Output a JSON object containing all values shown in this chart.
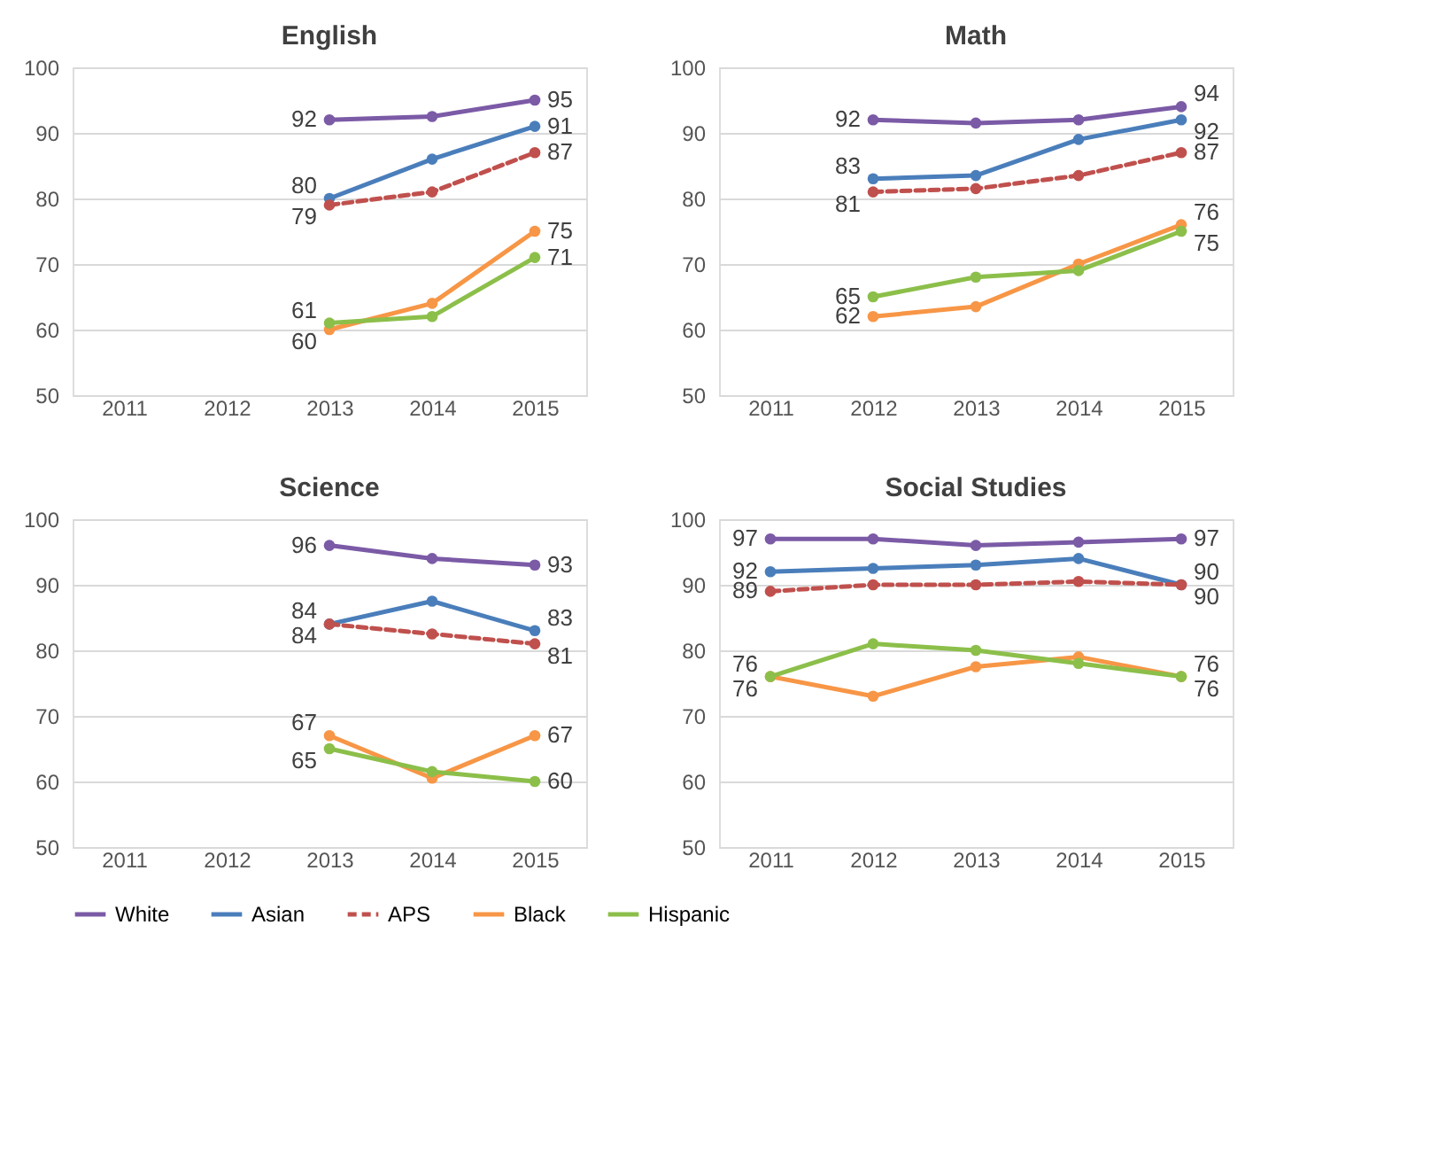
{
  "chart_data": [
    {
      "type": "line",
      "title": "English",
      "categories": [
        "2011",
        "2012",
        "2013",
        "2014",
        "2015"
      ],
      "ylim": [
        50,
        100
      ],
      "yticks": [
        50,
        60,
        70,
        80,
        90,
        100
      ],
      "grid": "y",
      "marker": "circle",
      "legend": "bottom",
      "series": [
        {
          "name": "White",
          "color": "#7b5aa6",
          "values": [
            null,
            null,
            92,
            92.5,
            95
          ],
          "value_labels": [
            null,
            null,
            "92",
            null,
            "95"
          ]
        },
        {
          "name": "Asian",
          "color": "#4a7ebb",
          "values": [
            null,
            null,
            80,
            86,
            91
          ],
          "value_labels": [
            null,
            null,
            "80",
            null,
            "91"
          ]
        },
        {
          "name": "APS",
          "color": "#c0504d",
          "line_style": "dashed",
          "values": [
            null,
            null,
            79,
            81,
            87
          ],
          "value_labels": [
            null,
            null,
            "79",
            null,
            "87"
          ]
        },
        {
          "name": "Black",
          "color": "#f79646",
          "values": [
            null,
            null,
            60,
            64,
            75
          ],
          "value_labels": [
            null,
            null,
            "60",
            null,
            "75"
          ]
        },
        {
          "name": "Hispanic",
          "color": "#8cbf4a",
          "values": [
            null,
            null,
            61,
            62,
            71
          ],
          "value_labels": [
            null,
            null,
            "61",
            null,
            "71"
          ]
        }
      ]
    },
    {
      "type": "line",
      "title": "Math",
      "categories": [
        "2011",
        "2012",
        "2013",
        "2014",
        "2015"
      ],
      "ylim": [
        50,
        100
      ],
      "yticks": [
        50,
        60,
        70,
        80,
        90,
        100
      ],
      "grid": "y",
      "marker": "circle",
      "legend": "bottom",
      "series": [
        {
          "name": "White",
          "color": "#7b5aa6",
          "values": [
            null,
            92,
            91.5,
            92,
            94
          ],
          "value_labels": [
            null,
            "92",
            null,
            null,
            "94"
          ]
        },
        {
          "name": "Asian",
          "color": "#4a7ebb",
          "values": [
            null,
            83,
            83.5,
            89,
            92
          ],
          "value_labels": [
            null,
            "83",
            null,
            null,
            "92"
          ]
        },
        {
          "name": "APS",
          "color": "#c0504d",
          "line_style": "dashed",
          "values": [
            null,
            81,
            81.5,
            83.5,
            87
          ],
          "value_labels": [
            null,
            "81",
            null,
            null,
            "87"
          ]
        },
        {
          "name": "Black",
          "color": "#f79646",
          "values": [
            null,
            62,
            63.5,
            70,
            76
          ],
          "value_labels": [
            null,
            "62",
            null,
            null,
            "76"
          ]
        },
        {
          "name": "Hispanic",
          "color": "#8cbf4a",
          "values": [
            null,
            65,
            68,
            69,
            75
          ],
          "value_labels": [
            null,
            "65",
            null,
            null,
            "75"
          ]
        }
      ]
    },
    {
      "type": "line",
      "title": "Science",
      "categories": [
        "2011",
        "2012",
        "2013",
        "2014",
        "2015"
      ],
      "ylim": [
        50,
        100
      ],
      "yticks": [
        50,
        60,
        70,
        80,
        90,
        100
      ],
      "grid": "y",
      "marker": "circle",
      "legend": "bottom",
      "series": [
        {
          "name": "White",
          "color": "#7b5aa6",
          "values": [
            null,
            null,
            96,
            94,
            93
          ],
          "value_labels": [
            null,
            null,
            "96",
            null,
            "93"
          ]
        },
        {
          "name": "Asian",
          "color": "#4a7ebb",
          "values": [
            null,
            null,
            84,
            87.5,
            83
          ],
          "value_labels": [
            null,
            null,
            "84",
            null,
            "83"
          ]
        },
        {
          "name": "APS",
          "color": "#c0504d",
          "line_style": "dashed",
          "values": [
            null,
            null,
            84,
            82.5,
            81
          ],
          "value_labels": [
            null,
            null,
            "84",
            null,
            "81"
          ]
        },
        {
          "name": "Black",
          "color": "#f79646",
          "values": [
            null,
            null,
            67,
            60.5,
            67
          ],
          "value_labels": [
            null,
            null,
            "67",
            null,
            "67"
          ]
        },
        {
          "name": "Hispanic",
          "color": "#8cbf4a",
          "values": [
            null,
            null,
            65,
            61.5,
            60
          ],
          "value_labels": [
            null,
            null,
            "65",
            null,
            "60"
          ]
        }
      ]
    },
    {
      "type": "line",
      "title": "Social Studies",
      "categories": [
        "2011",
        "2012",
        "2013",
        "2014",
        "2015"
      ],
      "ylim": [
        50,
        100
      ],
      "yticks": [
        50,
        60,
        70,
        80,
        90,
        100
      ],
      "grid": "y",
      "marker": "circle",
      "legend": "bottom",
      "series": [
        {
          "name": "White",
          "color": "#7b5aa6",
          "values": [
            97,
            97,
            96,
            96.5,
            97
          ],
          "value_labels": [
            "97",
            null,
            null,
            null,
            "97"
          ]
        },
        {
          "name": "Asian",
          "color": "#4a7ebb",
          "values": [
            92,
            92.5,
            93,
            94,
            90
          ],
          "value_labels": [
            "92",
            null,
            null,
            null,
            "90"
          ]
        },
        {
          "name": "APS",
          "color": "#c0504d",
          "line_style": "dashed",
          "values": [
            89,
            90,
            90,
            90.5,
            90
          ],
          "value_labels": [
            "89",
            null,
            null,
            null,
            "90"
          ]
        },
        {
          "name": "Black",
          "color": "#f79646",
          "values": [
            76,
            73,
            77.5,
            79,
            76
          ],
          "value_labels": [
            "76",
            null,
            null,
            null,
            "76"
          ]
        },
        {
          "name": "Hispanic",
          "color": "#8cbf4a",
          "values": [
            76,
            81,
            80,
            78,
            76
          ],
          "value_labels": [
            "76",
            null,
            null,
            null,
            "76"
          ]
        }
      ]
    }
  ]
}
